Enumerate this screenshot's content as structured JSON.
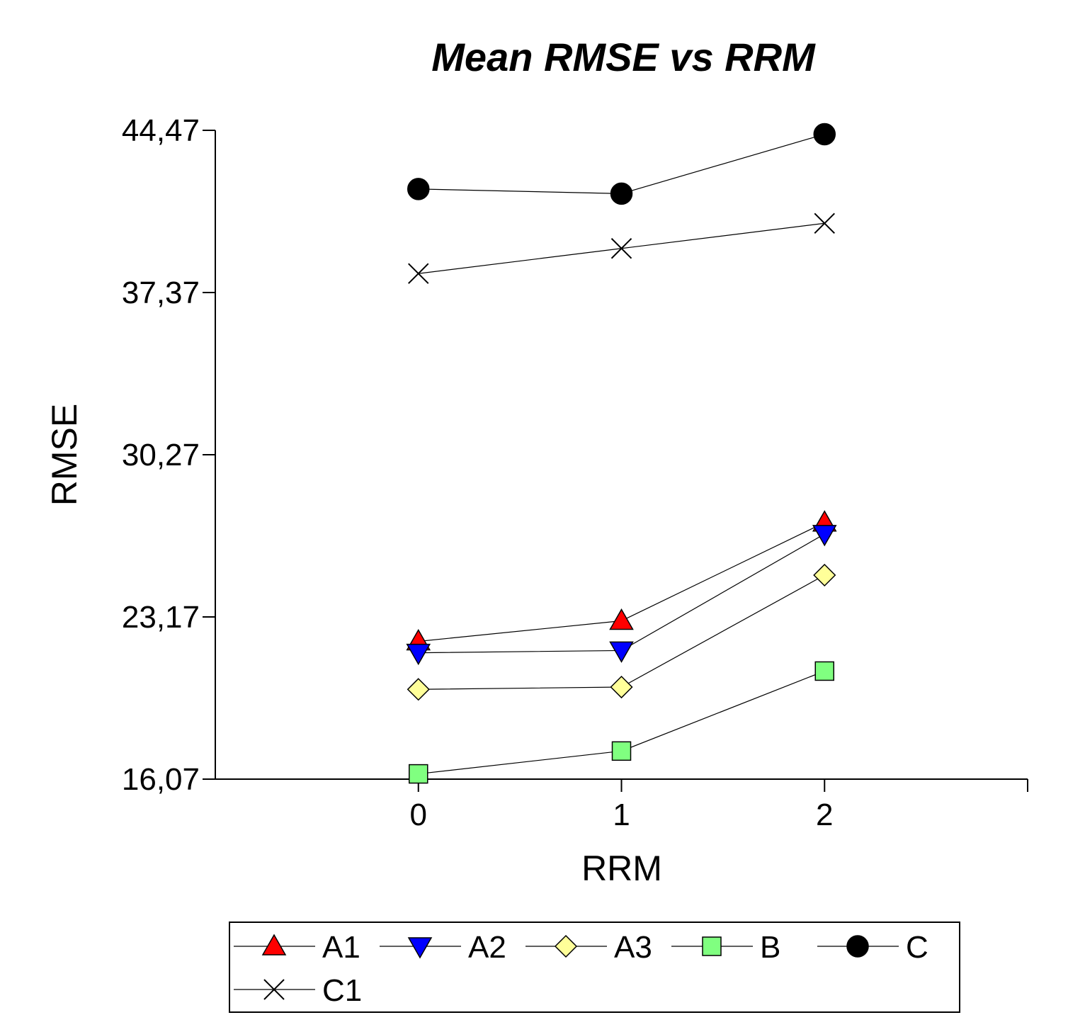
{
  "chart_data": {
    "type": "line",
    "title": "Mean RMSE vs RRM",
    "xlabel": "RRM",
    "ylabel": "RMSE",
    "x": [
      0,
      1,
      2
    ],
    "xlim": [
      -1,
      3
    ],
    "ylim": [
      16.07,
      44.47
    ],
    "yticks": [
      "16,07",
      "23,17",
      "30,27",
      "37,37",
      "44,47"
    ],
    "ytick_values": [
      16.07,
      23.17,
      30.27,
      37.37,
      44.47
    ],
    "xticks": [
      "0",
      "1",
      "2"
    ],
    "grid": false,
    "legend_position": "bottom",
    "series": [
      {
        "name": "A1",
        "marker": "triangle-up",
        "color": "#ff0000",
        "values": [
          22.1,
          23.0,
          27.3
        ]
      },
      {
        "name": "A2",
        "marker": "triangle-down",
        "color": "#0000ff",
        "values": [
          21.6,
          21.7,
          26.8
        ]
      },
      {
        "name": "A3",
        "marker": "diamond",
        "color": "#ffff99",
        "values": [
          20.0,
          20.1,
          25.0
        ]
      },
      {
        "name": "B",
        "marker": "square",
        "color": "#80ff80",
        "values": [
          16.3,
          17.3,
          20.8
        ]
      },
      {
        "name": "C",
        "marker": "circle",
        "color": "#000000",
        "values": [
          41.9,
          41.7,
          44.3
        ]
      },
      {
        "name": "C1",
        "marker": "x",
        "color": "#000000",
        "values": [
          38.2,
          39.3,
          40.4
        ]
      }
    ]
  }
}
